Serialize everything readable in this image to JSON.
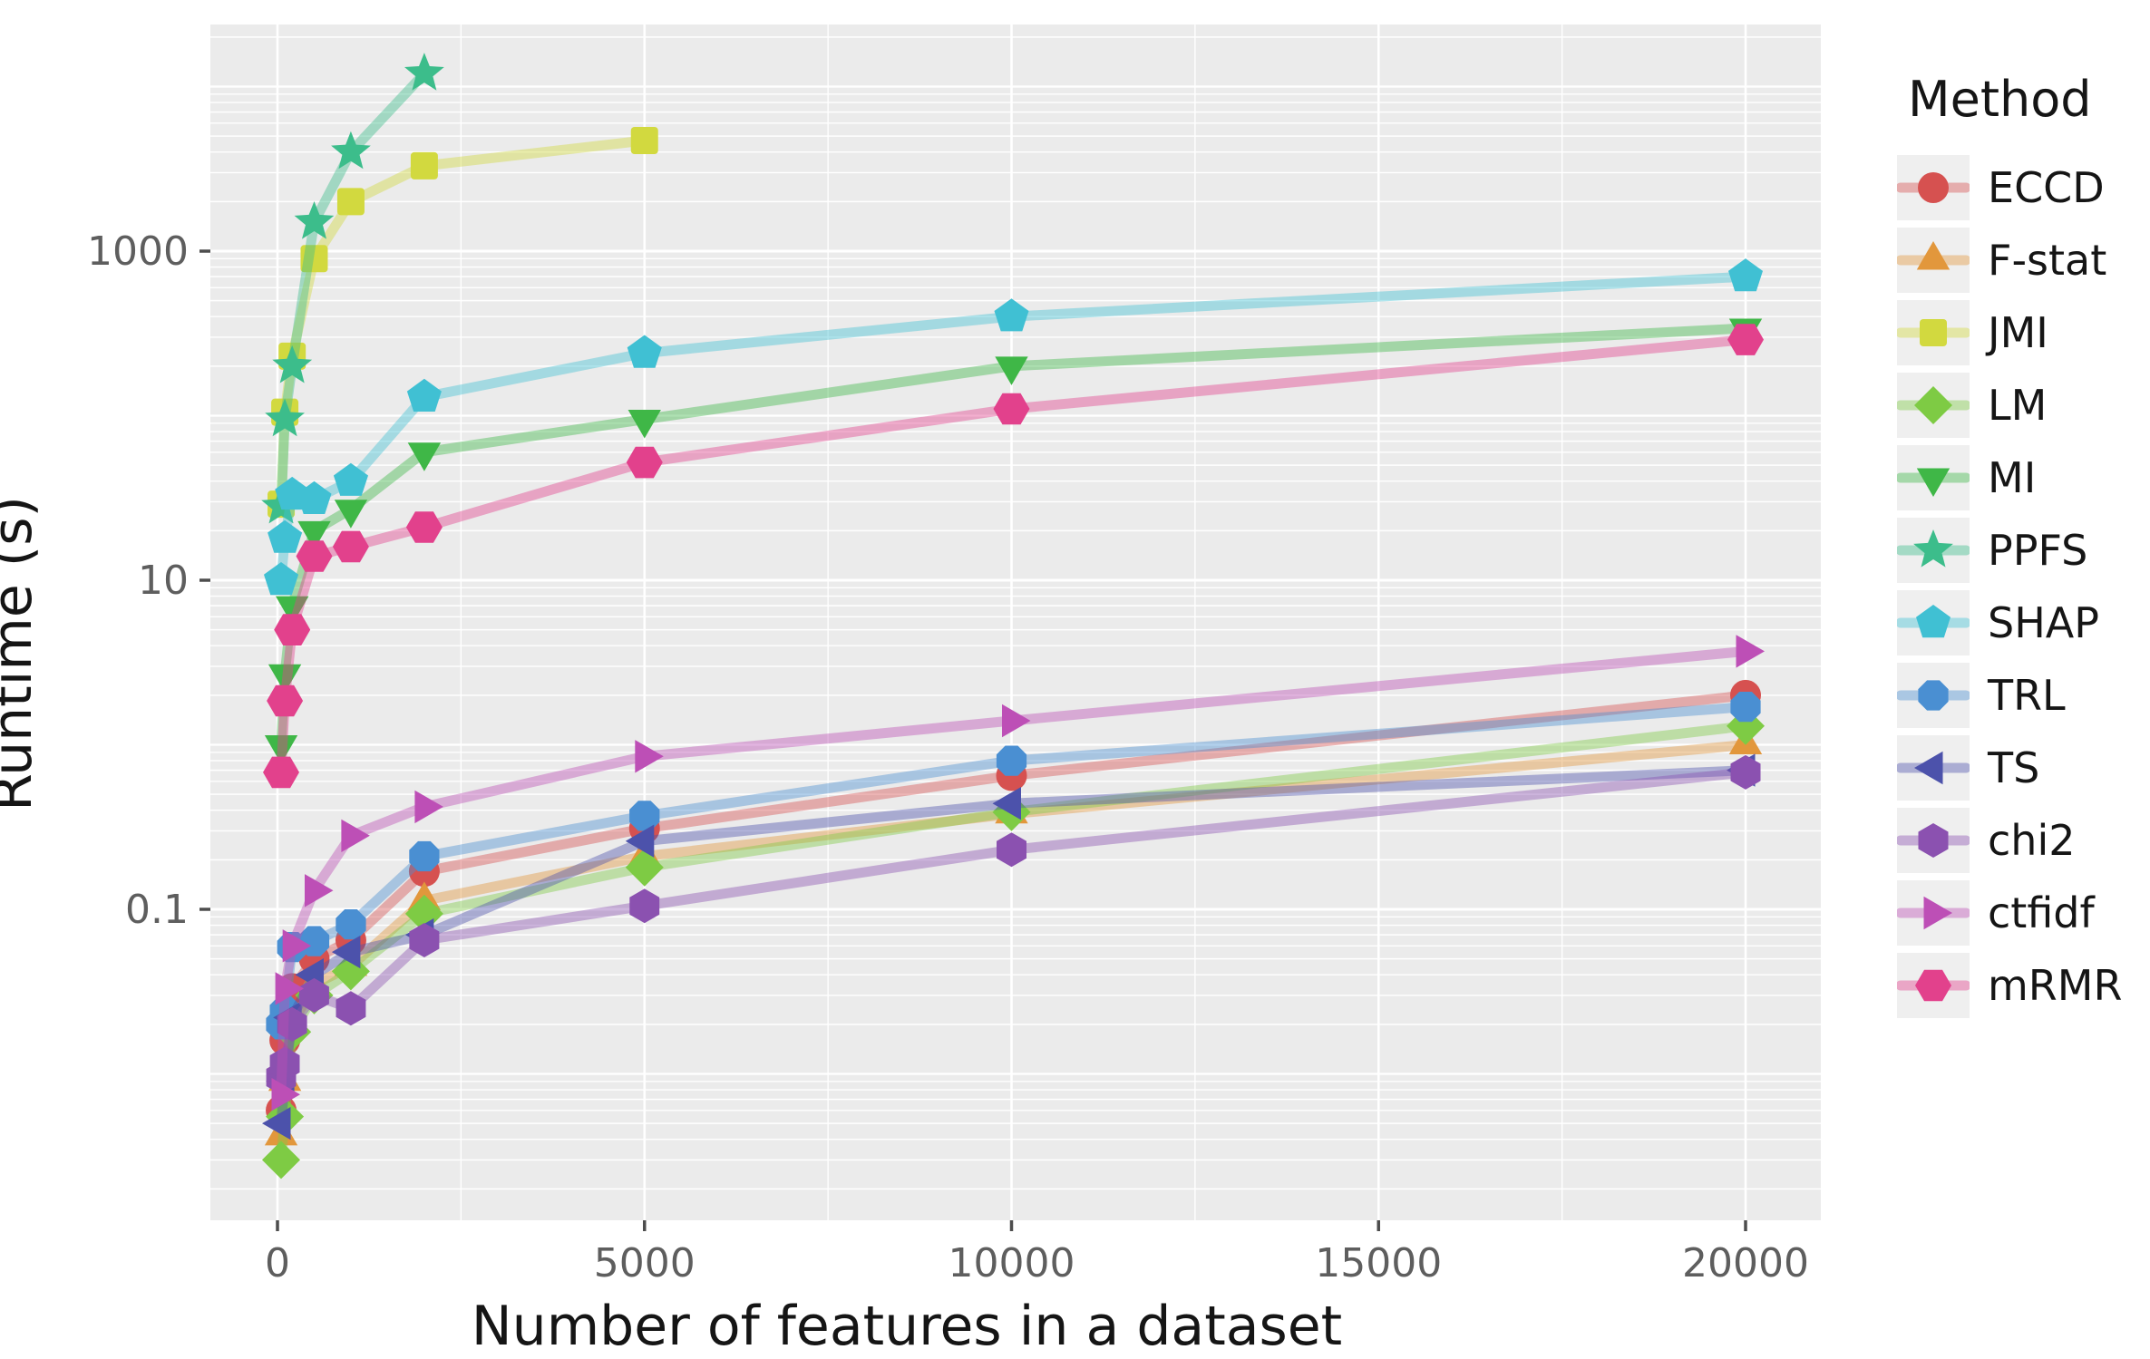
{
  "legend": {
    "title": "Method",
    "position": "right"
  },
  "chart_data": {
    "type": "line",
    "title": "",
    "xlabel": "Number of features in a dataset",
    "ylabel": "Runtime (s)",
    "y_scale": "log10",
    "x_ticks": [
      0,
      5000,
      10000,
      15000,
      20000
    ],
    "x_tick_labels": [
      "0",
      "5000",
      "10000",
      "15000",
      "20000"
    ],
    "x_minor_ticks": [
      2500,
      7500,
      12500,
      17500
    ],
    "y_ticks": [
      0.1,
      10,
      1000
    ],
    "y_tick_labels": [
      "0.1",
      "10",
      "1000"
    ],
    "y_range": [
      0.0013,
      23000
    ],
    "x_range": [
      -1100,
      21000
    ],
    "grid": "log-minor-on",
    "legend_position": "right",
    "panel_bg": "#ebebeb",
    "grid_color": "#ffffff",
    "tick_label_color": "#5e5e5e",
    "tick_mark_color": "#4d4d4d",
    "line_alpha": 0.42,
    "series": [
      {
        "name": "ECCD",
        "color": "#d65150",
        "marker": "circle",
        "x": [
          50,
          100,
          200,
          500,
          1000,
          2000,
          5000,
          10000,
          20000
        ],
        "y": [
          0.006,
          0.016,
          0.033,
          0.05,
          0.065,
          0.17,
          0.31,
          0.65,
          2.0
        ]
      },
      {
        "name": "F-stat",
        "color": "#e2973c",
        "marker": "triangle-up",
        "x": [
          50,
          100,
          200,
          500,
          1000,
          2000,
          5000,
          10000,
          20000
        ],
        "y": [
          0.0042,
          0.009,
          0.02,
          0.035,
          0.045,
          0.113,
          0.21,
          0.38,
          1.0
        ]
      },
      {
        "name": "JMI",
        "color": "#d2d93f",
        "marker": "square",
        "x": [
          50,
          100,
          200,
          500,
          1000,
          2000,
          5000
        ],
        "y": [
          29,
          105,
          230,
          900,
          2000,
          3300,
          4700
        ]
      },
      {
        "name": "LM",
        "color": "#7ecb44",
        "marker": "diamond",
        "x": [
          50,
          100,
          200,
          500,
          1000,
          2000,
          5000,
          10000,
          20000
        ],
        "y": [
          0.003,
          0.0055,
          0.018,
          0.03,
          0.042,
          0.094,
          0.18,
          0.39,
          1.3
        ]
      },
      {
        "name": "MI",
        "color": "#3fb747",
        "marker": "triangle-down",
        "x": [
          50,
          100,
          200,
          500,
          1000,
          2000,
          5000,
          10000,
          20000
        ],
        "y": [
          1.0,
          2.7,
          7,
          20,
          27,
          60,
          95,
          200,
          340
        ]
      },
      {
        "name": "PPFS",
        "color": "#3cbd8b",
        "marker": "star",
        "x": [
          50,
          100,
          200,
          500,
          1000,
          2000
        ],
        "y": [
          28,
          95,
          200,
          1500,
          4000,
          12000
        ]
      },
      {
        "name": "SHAP",
        "color": "#40c0d3",
        "marker": "pentagon",
        "x": [
          50,
          100,
          200,
          500,
          1000,
          2000,
          5000,
          10000,
          20000
        ],
        "y": [
          10,
          18,
          33,
          31,
          40,
          130,
          240,
          400,
          700
        ]
      },
      {
        "name": "TRL",
        "color": "#4a8fd2",
        "marker": "octagon",
        "x": [
          50,
          100,
          200,
          500,
          1000,
          2000,
          5000,
          10000,
          20000
        ],
        "y": [
          0.02,
          0.024,
          0.059,
          0.064,
          0.081,
          0.21,
          0.37,
          0.8,
          1.7
        ]
      },
      {
        "name": "TS",
        "color": "#4c52ab",
        "marker": "triangle-left",
        "x": [
          50,
          100,
          200,
          500,
          1000,
          2000,
          5000,
          10000,
          20000
        ],
        "y": [
          0.005,
          0.009,
          0.022,
          0.04,
          0.055,
          0.07,
          0.26,
          0.44,
          0.7
        ]
      },
      {
        "name": "chi2",
        "color": "#8b51b0",
        "marker": "hexagon",
        "x": [
          50,
          100,
          200,
          500,
          1000,
          2000,
          5000,
          10000,
          20000
        ],
        "y": [
          0.0095,
          0.0115,
          0.02,
          0.03,
          0.025,
          0.065,
          0.105,
          0.23,
          0.68
        ]
      },
      {
        "name": "ctfidf",
        "color": "#bd4fb6",
        "marker": "triangle-right",
        "x": [
          50,
          100,
          200,
          500,
          1000,
          2000,
          5000,
          10000,
          20000
        ],
        "y": [
          0.0075,
          0.033,
          0.06,
          0.13,
          0.28,
          0.42,
          0.85,
          1.4,
          3.7
        ]
      },
      {
        "name": "mRMR",
        "color": "#e2418c",
        "marker": "hexagon-flat",
        "x": [
          50,
          100,
          200,
          500,
          1000,
          2000,
          5000,
          10000,
          20000
        ],
        "y": [
          0.68,
          1.85,
          5,
          14,
          16,
          21,
          52,
          110,
          290
        ]
      }
    ]
  }
}
